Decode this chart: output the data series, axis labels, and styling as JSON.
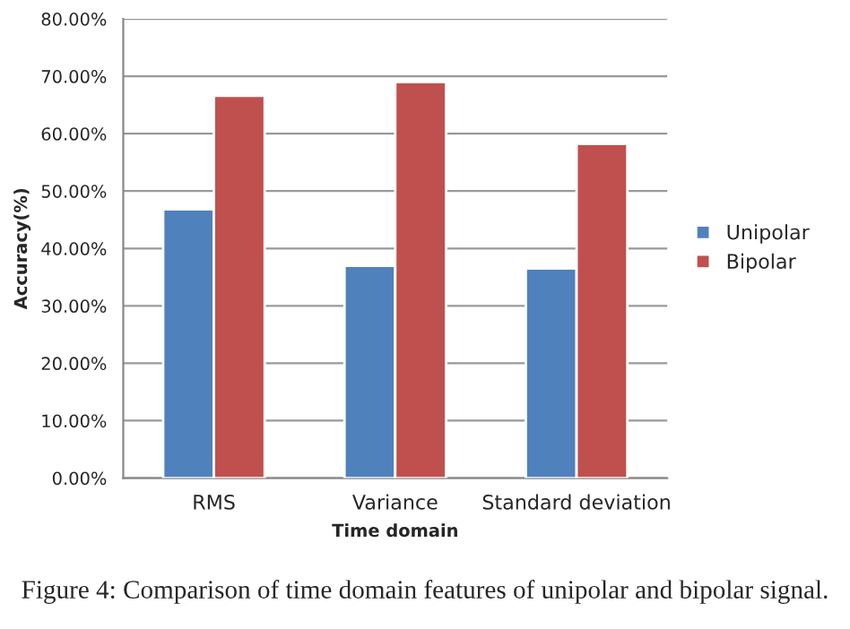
{
  "chart_data": {
    "type": "bar",
    "xlabel": "Time domain",
    "ylabel": "Accuracy(%)",
    "categories": [
      "RMS",
      "Variance",
      "Standard deviation"
    ],
    "series": [
      {
        "name": "Unipolar",
        "color": "#4f81bd",
        "values": [
          46.8,
          37.0,
          36.5
        ]
      },
      {
        "name": "Bipolar",
        "color": "#c0504d",
        "values": [
          66.6,
          69.0,
          58.2
        ]
      }
    ],
    "ylim": [
      0,
      80
    ],
    "yticks": [
      {
        "value": 0,
        "label": "0.00%"
      },
      {
        "value": 10,
        "label": "10.00%"
      },
      {
        "value": 20,
        "label": "20.00%"
      },
      {
        "value": 30,
        "label": "30.00%"
      },
      {
        "value": 40,
        "label": "40.00%"
      },
      {
        "value": 50,
        "label": "50.00%"
      },
      {
        "value": 60,
        "label": "60.00%"
      },
      {
        "value": 70,
        "label": "70.00%"
      },
      {
        "value": 80,
        "label": "80.00%"
      }
    ],
    "grid": "y",
    "legend": "right",
    "annotations": [
      "Figure 4: Comparison of time domain features of unipolar and bipolar signal."
    ]
  }
}
